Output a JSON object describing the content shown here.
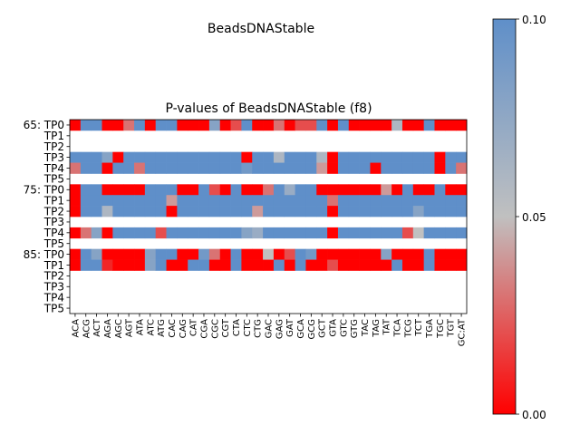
{
  "figure": {
    "suptitle": "BeadsDNAStable",
    "title": "P-values of BeadsDNAStable (f8)"
  },
  "colorbar": {
    "ticks": [
      "0.00",
      "0.05",
      "0.10"
    ],
    "range": [
      0,
      0.1
    ],
    "colors": {
      "low": "#ff0000",
      "mid": "#c0c0c0",
      "high": "#5f8fc9"
    }
  },
  "chart_data": {
    "type": "heatmap",
    "x_labels": [
      "ACA",
      "ACG",
      "ACT",
      "AGA",
      "AGC",
      "AGT",
      "ATA",
      "ATC",
      "ATG",
      "CAC",
      "CAG",
      "CAT",
      "CGA",
      "CGC",
      "CGT",
      "CTA",
      "CTC",
      "CTG",
      "GAC",
      "GAG",
      "GAT",
      "GCA",
      "GCG",
      "GCT",
      "GTA",
      "GTC",
      "GTG",
      "TAC",
      "TAG",
      "TAT",
      "TCA",
      "TCG",
      "TCT",
      "TGA",
      "TGC",
      "TGT",
      "GC:AT"
    ],
    "y_labels": [
      "65: TP0",
      "TP1",
      "TP2",
      "TP3",
      "TP4",
      "TP5",
      "75: TP0",
      "TP1",
      "TP2",
      "TP3",
      "TP4",
      "TP5",
      "85: TP0",
      "TP1",
      "TP2",
      "TP3",
      "TP4",
      "TP5"
    ],
    "vmin": 0,
    "vmax": 0.1,
    "missing_value_color": "white",
    "values": [
      [
        0,
        0.1,
        0.1,
        0,
        0,
        0.03,
        0.1,
        0,
        0.1,
        0.1,
        0,
        0,
        0,
        0.08,
        0,
        0.02,
        0.1,
        0,
        0,
        0.03,
        0,
        0.02,
        0.02,
        0.1,
        0,
        0.1,
        0,
        0,
        0,
        0,
        0.06,
        0,
        0,
        0.1,
        0,
        0,
        0
      ],
      null,
      null,
      [
        0.1,
        0.1,
        0.1,
        0.08,
        0,
        0.1,
        0.1,
        0.1,
        0.1,
        0.1,
        0.1,
        0.1,
        0.1,
        0.1,
        0.1,
        0.1,
        0,
        0.1,
        0.1,
        0.06,
        0.1,
        0.1,
        0.1,
        0.06,
        0,
        0.1,
        0.1,
        0.1,
        0.1,
        0.1,
        0.1,
        0.1,
        0.1,
        0.1,
        0,
        0.1,
        0.1
      ],
      [
        0.03,
        0.1,
        0.1,
        0,
        0.1,
        0.1,
        0.03,
        0.1,
        0.1,
        0.1,
        0.1,
        0.1,
        0.1,
        0.1,
        0.1,
        0.1,
        0.09,
        0.1,
        0.1,
        0.1,
        0.1,
        0.1,
        0.1,
        0.04,
        0,
        0.1,
        0.1,
        0.1,
        0,
        0.1,
        0.1,
        0.1,
        0.1,
        0.1,
        0,
        0.1,
        0.03
      ],
      null,
      [
        0,
        0.1,
        0.1,
        0,
        0,
        0,
        0,
        0.1,
        0.1,
        0.1,
        0,
        0,
        0.1,
        0.02,
        0,
        0.1,
        0,
        0,
        0.03,
        0.1,
        0.07,
        0.1,
        0.1,
        0,
        0,
        0,
        0,
        0,
        0,
        0.04,
        0,
        0.1,
        0,
        0,
        0.1,
        0,
        0
      ],
      [
        0,
        0.1,
        0.1,
        0.1,
        0.1,
        0.1,
        0.1,
        0.1,
        0.1,
        0.04,
        0.1,
        0.1,
        0.1,
        0.1,
        0.1,
        0.1,
        0.1,
        0.1,
        0.1,
        0.1,
        0.1,
        0.1,
        0.1,
        0.1,
        0.03,
        0.1,
        0.1,
        0.1,
        0.1,
        0.1,
        0.1,
        0.1,
        0.1,
        0.1,
        0.1,
        0.1,
        0.1
      ],
      [
        0,
        0.1,
        0.1,
        0.06,
        0.1,
        0.1,
        0.1,
        0.1,
        0.1,
        0,
        0.1,
        0.1,
        0.1,
        0.1,
        0.1,
        0.1,
        0.1,
        0.04,
        0.1,
        0.1,
        0.1,
        0.1,
        0.1,
        0.1,
        0,
        0.1,
        0.1,
        0.1,
        0.1,
        0.1,
        0.1,
        0.1,
        0.08,
        0.1,
        0.1,
        0.1,
        0.1
      ],
      null,
      [
        0,
        0.03,
        0.08,
        0,
        0.1,
        0.1,
        0.1,
        0.1,
        0.02,
        0.1,
        0.1,
        0.1,
        0.1,
        0.1,
        0.1,
        0.1,
        0.08,
        0.07,
        0.1,
        0.1,
        0.1,
        0.1,
        0.1,
        0.1,
        0,
        0.1,
        0.1,
        0.1,
        0.1,
        0.1,
        0.1,
        0.02,
        0.05,
        0.1,
        0.1,
        0.1,
        0.1
      ],
      null,
      [
        0,
        0.1,
        0.08,
        0,
        0,
        0,
        0,
        0.08,
        0.1,
        0.1,
        0,
        0,
        0.09,
        0.03,
        0,
        0.1,
        0,
        0,
        0.05,
        0,
        0.02,
        0.1,
        0.09,
        0,
        0,
        0,
        0,
        0,
        0,
        0.08,
        0,
        0,
        0,
        0.1,
        0,
        0,
        0
      ],
      [
        0,
        0.1,
        0.1,
        0.01,
        0,
        0,
        0,
        0.08,
        0.1,
        0,
        0,
        0.1,
        0.1,
        0,
        0,
        0.1,
        0,
        0,
        0,
        0.1,
        0,
        0.1,
        0,
        0,
        0.02,
        0,
        0,
        0,
        0,
        0,
        0.1,
        0,
        0,
        0.1,
        0,
        0,
        0
      ],
      null,
      null,
      null,
      null
    ]
  }
}
